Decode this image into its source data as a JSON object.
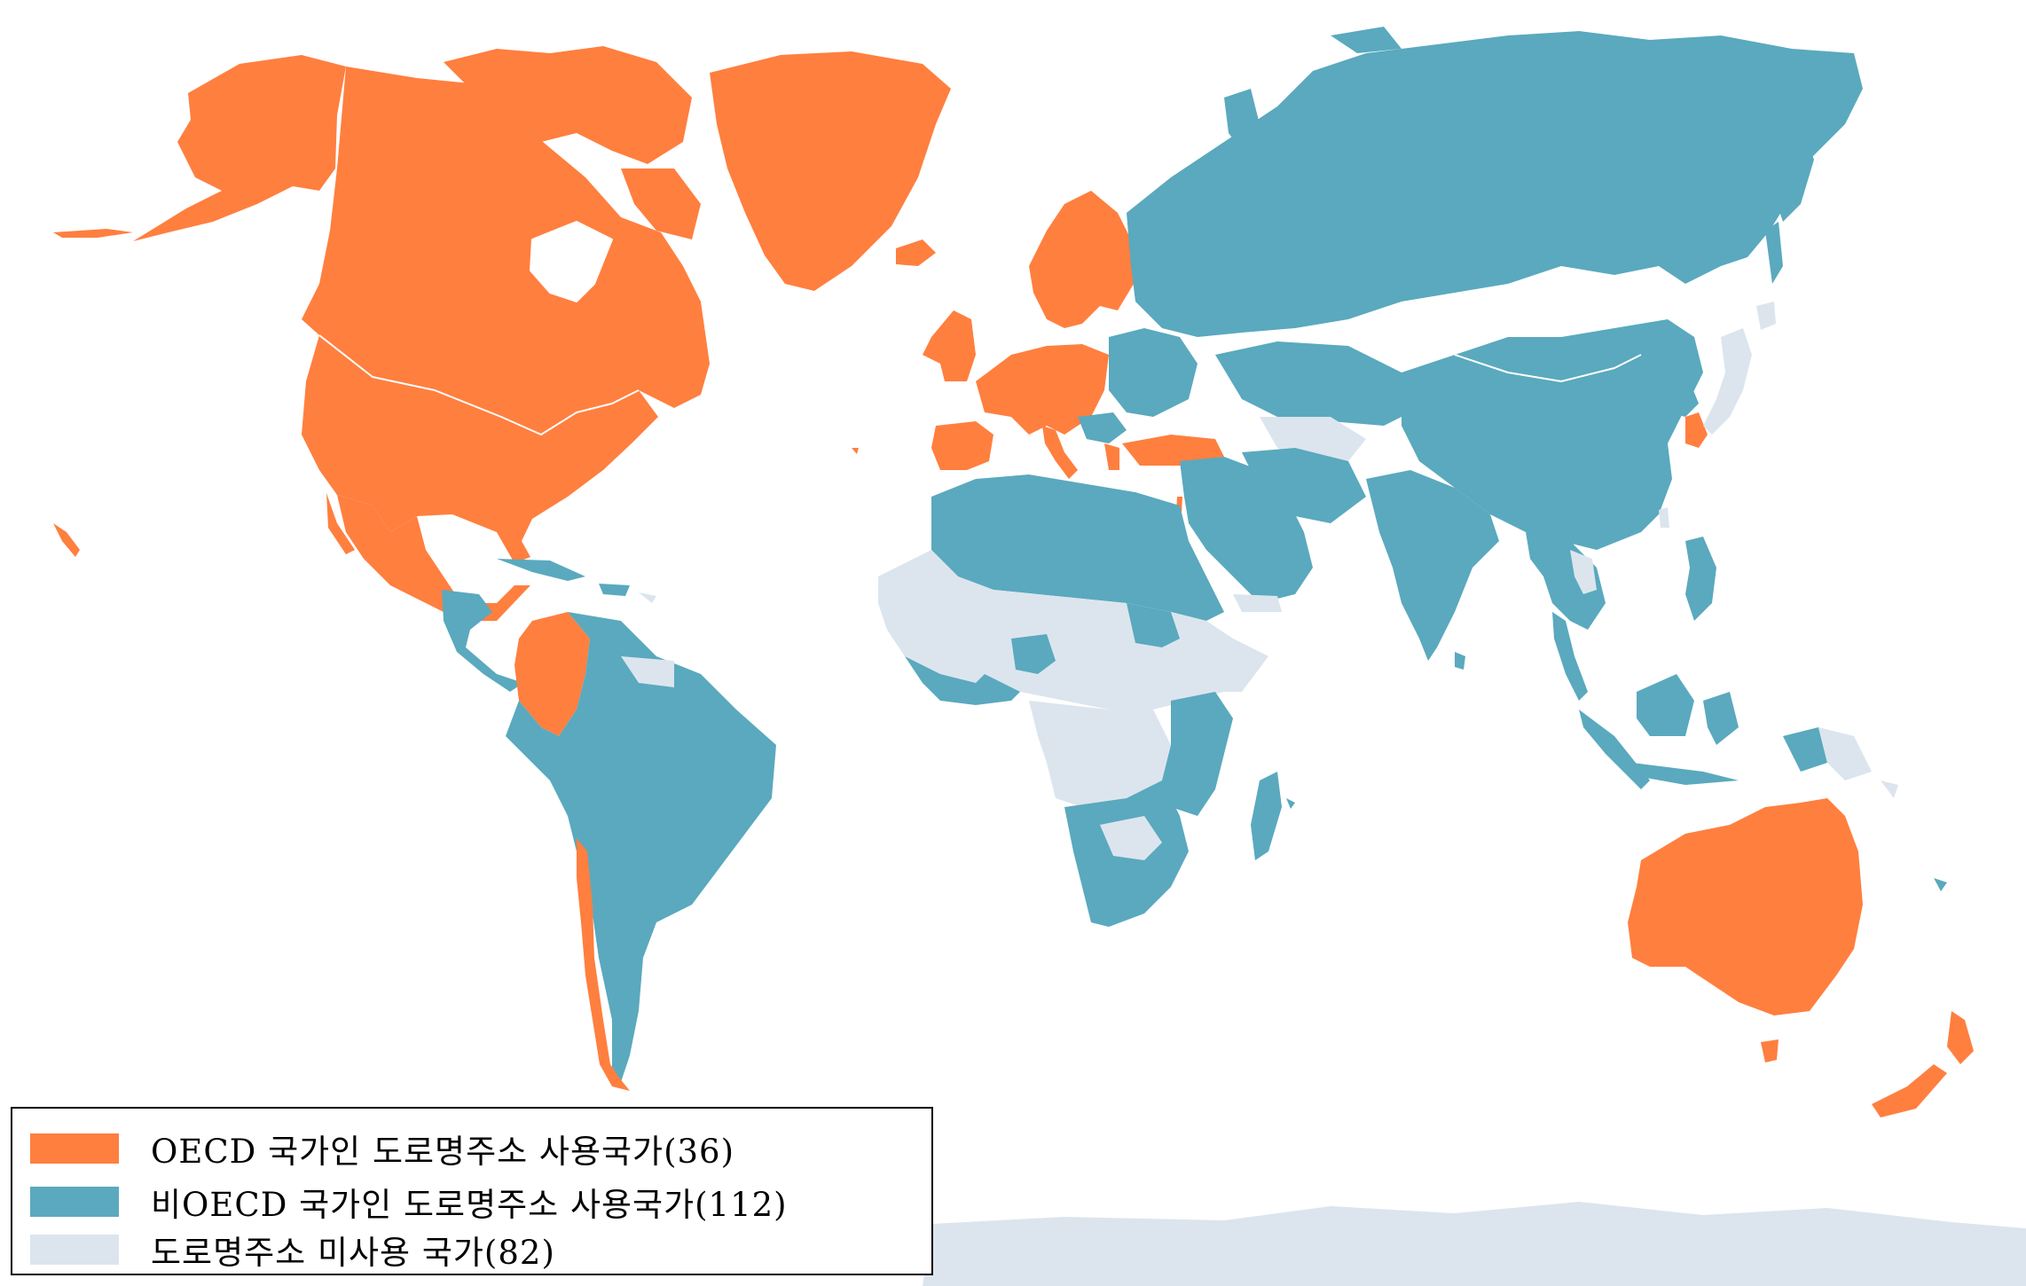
{
  "colors": {
    "oecd": "#FF7F3F",
    "non_oecd": "#5AA9BE",
    "unused": "#DCE5EE",
    "ocean": "#FFFFFF"
  },
  "legend": {
    "items": [
      {
        "label": "OECD 국가인 도로명주소 사용국가(36)",
        "category": "oecd",
        "count": 36
      },
      {
        "label": "비OECD 국가인 도로명주소 사용국가(112)",
        "category": "non_oecd",
        "count": 112
      },
      {
        "label": "도로명주소 미사용 국가(82)",
        "category": "unused",
        "count": 82
      }
    ]
  }
}
